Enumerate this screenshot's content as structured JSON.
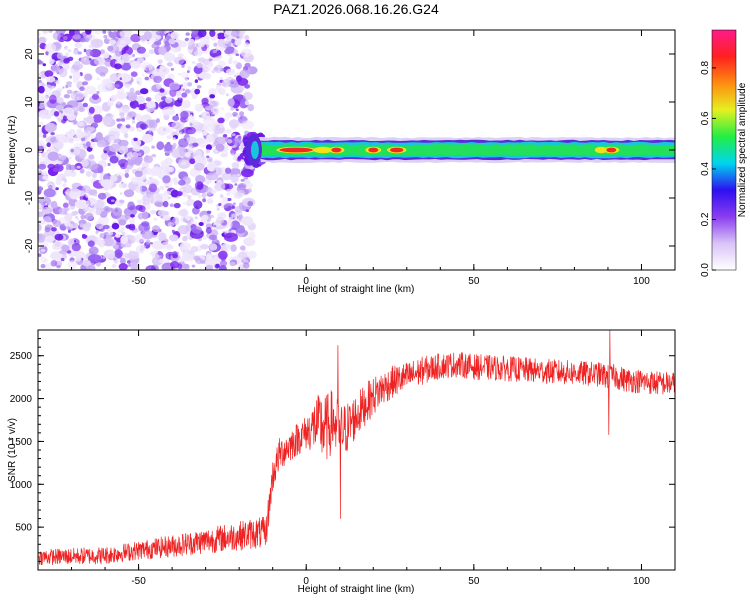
{
  "title": "PAZ1.2026.068.16.26.G24",
  "colors": {
    "snr_line": "#ee2222",
    "blob": "#7a22ee",
    "background": "#ffffff"
  },
  "chart_data": [
    {
      "type": "heatmap",
      "name": "spectrogram",
      "xlabel": "Height of straight line (km)",
      "ylabel": "Frequency (Hz)",
      "xlim": [
        -80,
        110
      ],
      "ylim": [
        -25,
        25
      ],
      "xticks": [
        -50,
        0,
        50,
        100
      ],
      "yticks": [
        -20,
        -10,
        0,
        10,
        20
      ],
      "noise_region_x": [
        -80,
        -15
      ],
      "band": {
        "x_start": -15,
        "x_end": 110,
        "layers": [
          {
            "half_width_hz": 2.6,
            "color": "#ddd2f6"
          },
          {
            "half_width_hz": 2.0,
            "color": "#5b2bd9"
          },
          {
            "half_width_hz": 1.6,
            "color": "#17c5dd"
          },
          {
            "half_width_hz": 1.1,
            "color": "#22e05a"
          }
        ],
        "hot_spots": [
          {
            "x": -3,
            "width": 10,
            "color": "#ef2a24"
          },
          {
            "x": 5,
            "width": 4,
            "color": "#f3e21a"
          },
          {
            "x": 9,
            "width": 3,
            "color": "#ef2a24"
          },
          {
            "x": 20,
            "width": 3,
            "color": "#ef2a24"
          },
          {
            "x": 27,
            "width": 4,
            "color": "#ef2a24"
          },
          {
            "x": 88,
            "width": 2,
            "color": "#f3e21a"
          },
          {
            "x": 91,
            "width": 3,
            "color": "#ef2a24"
          }
        ]
      },
      "colorbar": {
        "label": "Normalized spectral amplitude",
        "range": [
          0.0,
          0.95
        ],
        "ticks": [
          "0.0",
          "0.2",
          "0.4",
          "0.6",
          "0.8"
        ],
        "tick_values": [
          0.0,
          0.2,
          0.4,
          0.6,
          0.8
        ],
        "colors": [
          "#ffffff",
          "#d9c3f7",
          "#8a3df0",
          "#2d10f0",
          "#00d4f0",
          "#22ee44",
          "#e6f020",
          "#ff8c10",
          "#ff2020",
          "#ff1a8a"
        ]
      }
    },
    {
      "type": "line",
      "name": "snr",
      "xlabel": "Height of straight line (km)",
      "ylabel": "SNR (10 * v/v)",
      "xlim": [
        -80,
        110
      ],
      "ylim": [
        0,
        2800
      ],
      "xticks": [
        -50,
        0,
        50,
        100
      ],
      "yticks": [
        500,
        1000,
        1500,
        2000,
        2500
      ],
      "trend": {
        "x": [
          -80,
          -70,
          -60,
          -50,
          -40,
          -30,
          -20,
          -15,
          -12,
          -10,
          -8,
          -5,
          -2,
          0,
          3,
          6,
          8,
          10,
          12,
          15,
          18,
          22,
          26,
          30,
          35,
          40,
          45,
          50,
          60,
          70,
          80,
          88,
          90,
          92,
          95,
          100,
          105,
          110
        ],
        "y": [
          150,
          160,
          170,
          230,
          280,
          340,
          400,
          430,
          430,
          1100,
          1350,
          1450,
          1550,
          1600,
          1700,
          1650,
          1750,
          1600,
          1650,
          1800,
          1950,
          2100,
          2200,
          2250,
          2330,
          2380,
          2400,
          2370,
          2350,
          2320,
          2300,
          2280,
          2250,
          2260,
          2220,
          2200,
          2180,
          2170
        ]
      },
      "noise_amplitude": {
        "x": [
          -80,
          -50,
          -20,
          -12,
          -10,
          0,
          5,
          15,
          25,
          40,
          110
        ],
        "y": [
          90,
          110,
          170,
          190,
          190,
          200,
          420,
          260,
          190,
          150,
          140
        ]
      },
      "spikes": [
        {
          "x": 10.2,
          "y": 600
        },
        {
          "x": 9.5,
          "y": 2620
        },
        {
          "x": 90.2,
          "y": 1580
        },
        {
          "x": 90.6,
          "y": 2820
        }
      ],
      "samples": 1800
    }
  ]
}
